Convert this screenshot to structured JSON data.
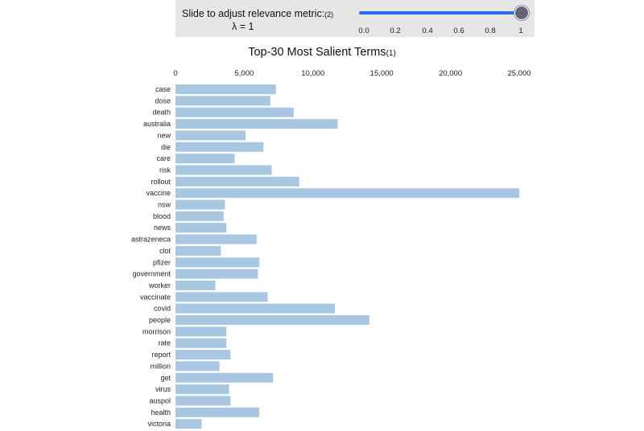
{
  "slider": {
    "label": "Slide to adjust relevance metric:",
    "label_ref": "(2)",
    "lambda_text": "λ = 1",
    "value": 1,
    "ticks": [
      "0.0",
      "0.2",
      "0.4",
      "0.6",
      "0.8",
      "1"
    ],
    "accent": "#2a6cf0"
  },
  "chart_title": {
    "text": "Top-30 Most Salient Terms",
    "ref": "(1)"
  },
  "chart_data": {
    "type": "bar",
    "orientation": "horizontal",
    "title": "Top-30 Most Salient Terms",
    "xlabel": "",
    "ylabel": "",
    "xlim": [
      0,
      25000
    ],
    "x_ticks": [
      0,
      5000,
      10000,
      15000,
      20000,
      25000
    ],
    "x_tick_labels": [
      "0",
      "5,000",
      "10,000",
      "15,000",
      "20,000",
      "25,000"
    ],
    "bar_color": "#a9c7e3",
    "categories": [
      "case",
      "dose",
      "death",
      "australia",
      "new",
      "die",
      "care",
      "risk",
      "rollout",
      "vaccine",
      "nsw",
      "blood",
      "news",
      "astrazeneca",
      "clot",
      "pfizer",
      "government",
      "worker",
      "vaccinate",
      "covid",
      "people",
      "morrison",
      "rate",
      "report",
      "million",
      "get",
      "virus",
      "auspol",
      "health",
      "victoria"
    ],
    "values": [
      7300,
      6900,
      8600,
      11800,
      5100,
      6400,
      4300,
      7000,
      9000,
      25000,
      3600,
      3500,
      3700,
      5900,
      3300,
      6100,
      6000,
      2900,
      6700,
      11600,
      14100,
      3700,
      3700,
      4000,
      3200,
      7100,
      3900,
      4000,
      6100,
      1900
    ]
  }
}
